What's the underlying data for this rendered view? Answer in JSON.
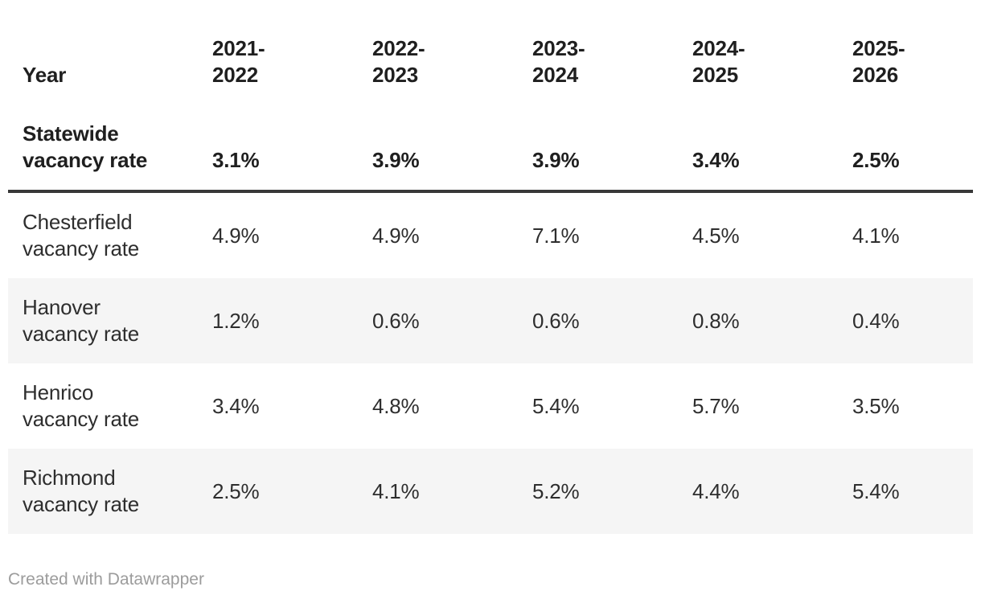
{
  "table": {
    "corner_label": "Year",
    "columns": [
      "2021-\n2022",
      "2022-\n2023",
      "2023-\n2024",
      "2024-\n2025",
      "2025-\n2026"
    ],
    "statewide": {
      "label": "Statewide\nvacancy rate",
      "values": [
        "3.1%",
        "3.9%",
        "3.9%",
        "3.4%",
        "2.5%"
      ]
    },
    "rows": [
      {
        "label": "Chesterfield\nvacancy rate",
        "values": [
          "4.9%",
          "4.9%",
          "7.1%",
          "4.5%",
          "4.1%"
        ]
      },
      {
        "label": "Hanover\nvacancy rate",
        "values": [
          "1.2%",
          "0.6%",
          "0.6%",
          "0.8%",
          "0.4%"
        ]
      },
      {
        "label": "Henrico\nvacancy rate",
        "values": [
          "3.4%",
          "4.8%",
          "5.4%",
          "5.7%",
          "3.5%"
        ]
      },
      {
        "label": "Richmond\nvacancy rate",
        "values": [
          "2.5%",
          "4.1%",
          "5.2%",
          "4.4%",
          "5.4%"
        ]
      }
    ]
  },
  "footer": {
    "attribution": "Created with Datawrapper"
  },
  "colors": {
    "header_text": "#1f1f1f",
    "body_text": "#2e2e2e",
    "header_rule": "#383838",
    "zebra_row": "#f5f5f5",
    "attribution_text": "#9c9c9c",
    "background": "#ffffff"
  },
  "chart_data": {
    "type": "table",
    "title": "",
    "row_header": "Year",
    "categories": [
      "2021-2022",
      "2022-2023",
      "2023-2024",
      "2024-2025",
      "2025-2026"
    ],
    "series": [
      {
        "name": "Statewide vacancy rate",
        "values": [
          3.1,
          3.9,
          3.9,
          3.4,
          2.5
        ]
      },
      {
        "name": "Chesterfield vacancy rate",
        "values": [
          4.9,
          4.9,
          7.1,
          4.5,
          4.1
        ]
      },
      {
        "name": "Hanover vacancy rate",
        "values": [
          1.2,
          0.6,
          0.6,
          0.8,
          0.4
        ]
      },
      {
        "name": "Henrico vacancy rate",
        "values": [
          3.4,
          4.8,
          5.4,
          5.7,
          3.5
        ]
      },
      {
        "name": "Richmond vacancy rate",
        "values": [
          2.5,
          4.1,
          5.2,
          4.4,
          5.4
        ]
      }
    ],
    "unit": "%",
    "layout_hints": {
      "zebra_striping": true,
      "thick_rule_below_header": true,
      "attribution": "Created with Datawrapper"
    }
  }
}
